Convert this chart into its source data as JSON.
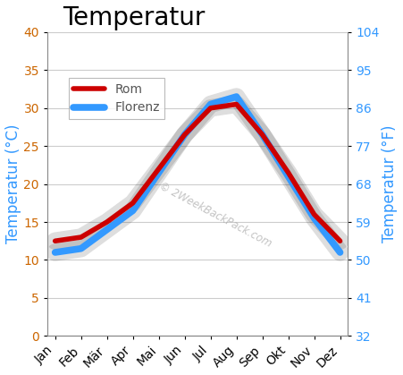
{
  "months": [
    "Jan",
    "Feb",
    "Mär",
    "Apr",
    "Mai",
    "Jun",
    "Jul",
    "Aug",
    "Sep",
    "Okt",
    "Nov",
    "Dez"
  ],
  "rom": [
    12.5,
    13.0,
    15.0,
    17.5,
    22.0,
    26.5,
    30.0,
    30.5,
    26.5,
    21.5,
    16.0,
    12.5
  ],
  "florenz": [
    11.0,
    11.5,
    14.0,
    16.5,
    21.5,
    26.5,
    30.5,
    31.5,
    26.5,
    21.0,
    15.5,
    11.0
  ],
  "rom_color": "#cc0000",
  "florenz_color": "#3399ff",
  "shadow_color": "#222222",
  "title": "Temperatur",
  "ylabel_left": "Temperatur (°C)",
  "ylabel_right": "Temperatur (°F)",
  "ylim_left": [
    0,
    40
  ],
  "ylim_right": [
    32,
    104
  ],
  "yticks_left": [
    0,
    5,
    10,
    15,
    20,
    25,
    30,
    35,
    40
  ],
  "yticks_right": [
    32,
    41,
    50,
    59,
    68,
    77,
    86,
    95,
    104
  ],
  "left_tick_color": "#cc6600",
  "right_tick_color": "#3399ff",
  "ylabel_left_color": "#3399ff",
  "ylabel_right_color": "#3399ff",
  "title_fontsize": 20,
  "axis_label_fontsize": 12,
  "tick_fontsize": 10,
  "watermark": "© 2WeekBackPack.com",
  "legend_labels": [
    "Rom",
    "Florenz"
  ],
  "background_color": "#ffffff",
  "grid_color": "#cccccc"
}
